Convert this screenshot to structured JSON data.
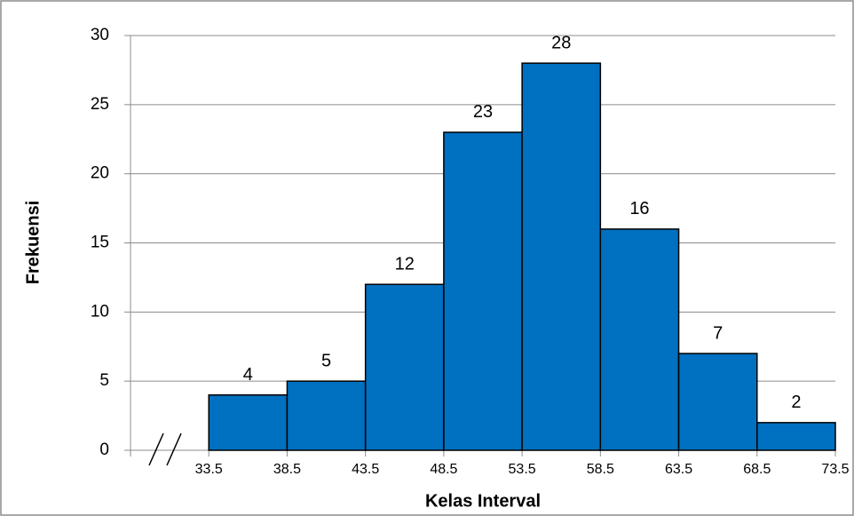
{
  "chart_data": {
    "type": "histogram",
    "bins": [
      33.5,
      38.5,
      43.5,
      48.5,
      53.5,
      58.5,
      63.5,
      68.5,
      73.5
    ],
    "values": [
      4,
      5,
      12,
      23,
      28,
      16,
      7,
      2
    ],
    "color": "#0070c0",
    "x_label": "Kelas Interval",
    "y_label": "Frekuensi",
    "xlim": [
      28.5,
      73.5
    ],
    "xticks": [
      33.5,
      38.5,
      43.5,
      48.5,
      53.5,
      58.5,
      63.5,
      68.5,
      73.5
    ],
    "ylim": [
      0,
      30
    ],
    "yticks": [
      0,
      5,
      10,
      15,
      20,
      25,
      30
    ],
    "grid": true
  }
}
